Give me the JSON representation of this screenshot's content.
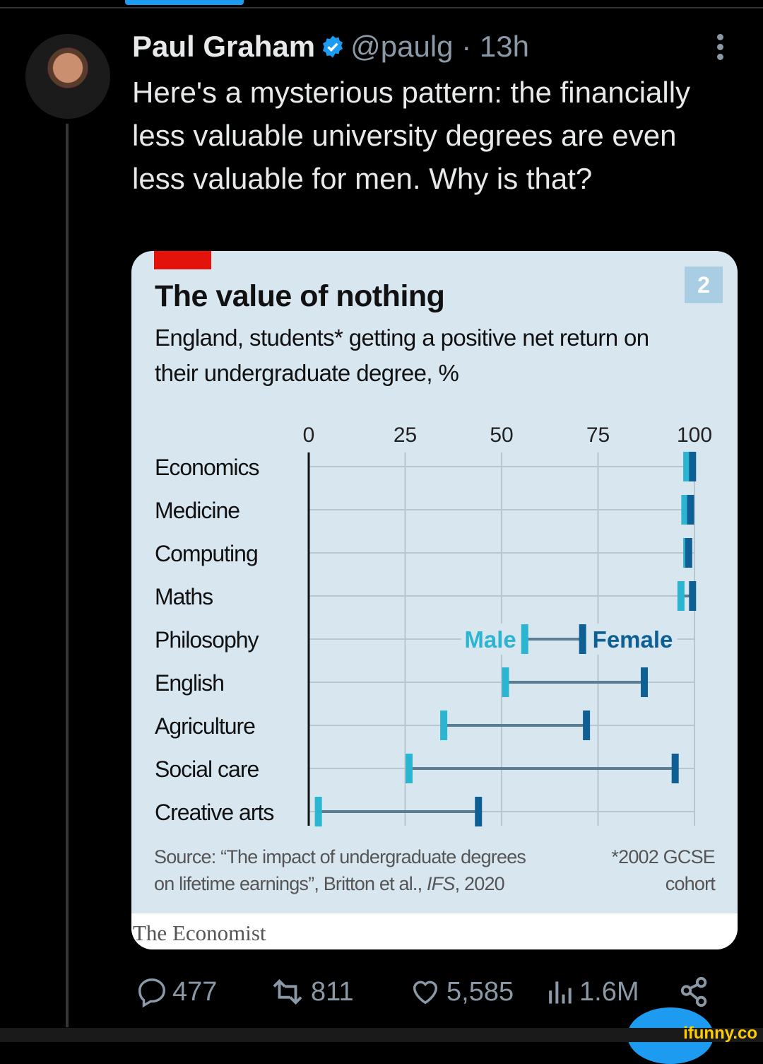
{
  "tweet": {
    "author_name": "Paul Graham",
    "handle": "@paulg",
    "separator": "·",
    "time": "13h",
    "text": "Here's a mysterious pattern: the financially less valuable university degrees are even less valuable for men. Why is that?",
    "verified": true,
    "stats": {
      "replies": "477",
      "reposts": "811",
      "likes": "5,585",
      "views": "1.6M"
    },
    "accent": "#1d9bf0"
  },
  "chart_card": {
    "page_badge": "2",
    "brand": "The Economist",
    "footnote_source": "Source: “The impact of undergraduate degrees on lifetime earnings”, Britton et al., IFS, 2020",
    "footnote_line1": "Source: “The impact of undergraduate degrees",
    "footnote_line2_pre": "on lifetime earnings”, Britton et al., ",
    "footnote_line2_ital": "IFS",
    "footnote_line2_post": ", 2020",
    "footnote_cohort_1": "*2002 GCSE",
    "footnote_cohort_2": "cohort"
  },
  "chart_data": {
    "type": "dumbbell",
    "title": "The value of nothing",
    "subtitle": "England, students* getting a positive net return on their undergraduate degree, %",
    "xlim": [
      0,
      100
    ],
    "xticks": [
      0,
      25,
      50,
      75,
      100
    ],
    "grid": true,
    "categories": [
      "Economics",
      "Medicine",
      "Computing",
      "Maths",
      "Philosophy",
      "English",
      "Agriculture",
      "Social care",
      "Creative arts"
    ],
    "series": [
      {
        "name": "Male",
        "color": "#2bb5d1",
        "values": [
          98,
          97.5,
          98,
          96.5,
          56,
          51,
          35,
          26,
          2.5
        ]
      },
      {
        "name": "Female",
        "color": "#0e5f93",
        "values": [
          99.5,
          99,
          98.5,
          99.5,
          71,
          87,
          72,
          95,
          44
        ]
      }
    ],
    "legend_placement": "inline on Philosophy row"
  },
  "icons": {
    "reply": "speech-bubble-icon",
    "repost": "repost-arrows-icon",
    "like": "heart-icon",
    "views": "bar-chart-icon",
    "share": "share-icon",
    "more": "more-vertical-icon"
  },
  "watermark": "ifunny.co"
}
